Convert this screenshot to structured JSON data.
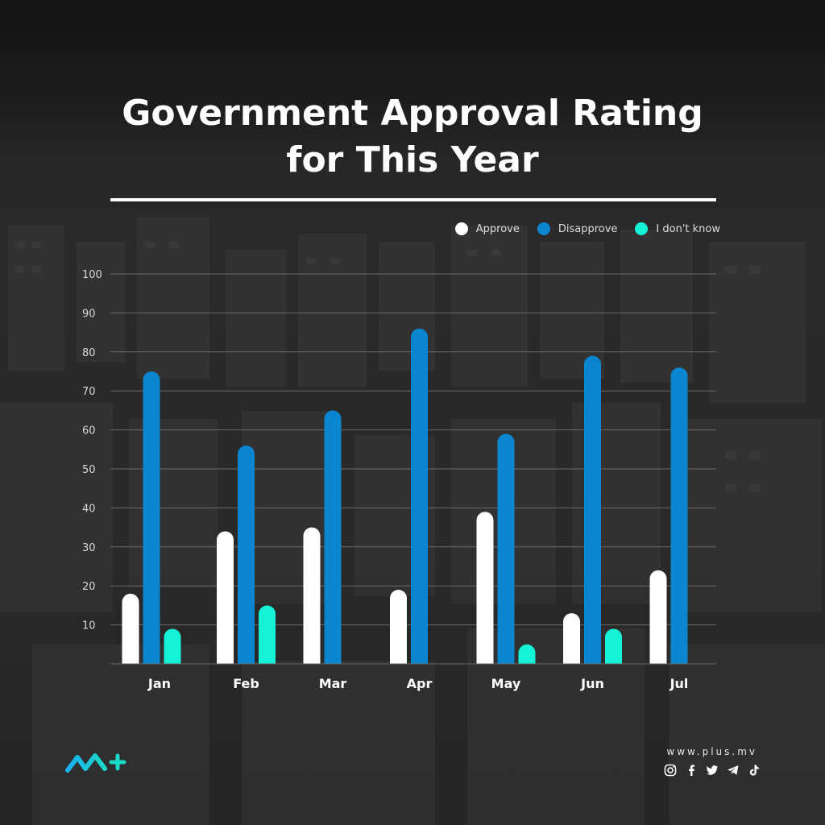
{
  "title_line1": "Government Approval Rating",
  "title_line2": "for This Year",
  "legend": [
    {
      "label": "Approve",
      "color": "#ffffff"
    },
    {
      "label": "Disapprove",
      "color": "#0a86d0"
    },
    {
      "label": "I don't know",
      "color": "#15f2d6"
    }
  ],
  "footer": {
    "url": "www.plus.mv",
    "brand_colors": [
      "#1ab0f0",
      "#19d8c8"
    ],
    "social_icons": [
      "instagram-icon",
      "facebook-icon",
      "twitter-icon",
      "telegram-icon",
      "tiktok-icon"
    ]
  },
  "chart_data": {
    "type": "bar",
    "title": "Government Approval Rating for This Year",
    "categories": [
      "Jan",
      "Feb",
      "Mar",
      "Apr",
      "May",
      "Jun",
      "Jul"
    ],
    "y_ticks": [
      10,
      20,
      30,
      40,
      50,
      60,
      70,
      80,
      90,
      100
    ],
    "ylim": [
      0,
      100
    ],
    "grid": true,
    "legend_position": "top-right",
    "series": [
      {
        "name": "Approve",
        "color": "#ffffff",
        "values": [
          18,
          34,
          35,
          19,
          39,
          13,
          24
        ]
      },
      {
        "name": "Disapprove",
        "color": "#0a86d0",
        "values": [
          75,
          56,
          65,
          86,
          59,
          79,
          76
        ]
      },
      {
        "name": "I don't know",
        "color": "#15f2d6",
        "values": [
          9,
          15,
          null,
          null,
          5,
          9,
          null
        ]
      }
    ]
  }
}
